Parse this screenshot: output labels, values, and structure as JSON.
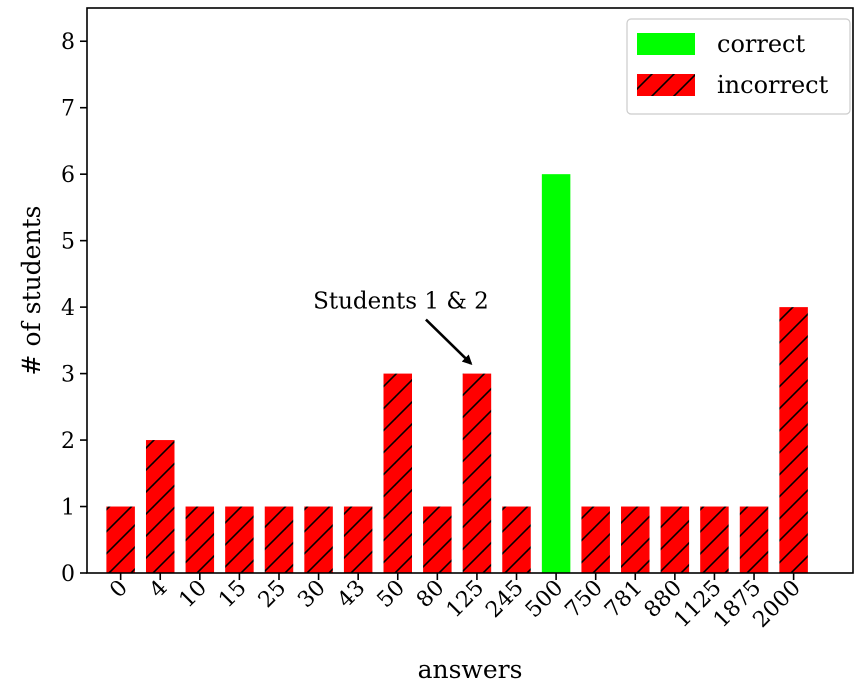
{
  "chart_data": {
    "type": "bar",
    "xlabel": "answers",
    "ylabel": "# of students",
    "ylim": [
      0,
      8.5
    ],
    "yticks": [
      0,
      1,
      2,
      3,
      4,
      5,
      6,
      7,
      8
    ],
    "categories": [
      "0",
      "4",
      "10",
      "15",
      "25",
      "30",
      "43",
      "50",
      "80",
      "125",
      "245",
      "500",
      "750",
      "781",
      "880",
      "1125",
      "1875",
      "2000"
    ],
    "values": [
      1,
      2,
      1,
      1,
      1,
      1,
      1,
      3,
      1,
      3,
      1,
      6,
      1,
      1,
      1,
      1,
      1,
      4
    ],
    "status": [
      "incorrect",
      "incorrect",
      "incorrect",
      "incorrect",
      "incorrect",
      "incorrect",
      "incorrect",
      "incorrect",
      "incorrect",
      "incorrect",
      "incorrect",
      "correct",
      "incorrect",
      "incorrect",
      "incorrect",
      "incorrect",
      "incorrect",
      "incorrect"
    ],
    "legend": {
      "placement": "top-right",
      "entries": [
        {
          "key": "correct",
          "label": "correct",
          "color": "#00ff00",
          "hatch": false
        },
        {
          "key": "incorrect",
          "label": "incorrect",
          "color": "#ff0000",
          "hatch": true
        }
      ]
    },
    "annotation": {
      "text": "Students 1 & 2",
      "target_category": "125",
      "target_value": 3
    },
    "grid": false
  }
}
